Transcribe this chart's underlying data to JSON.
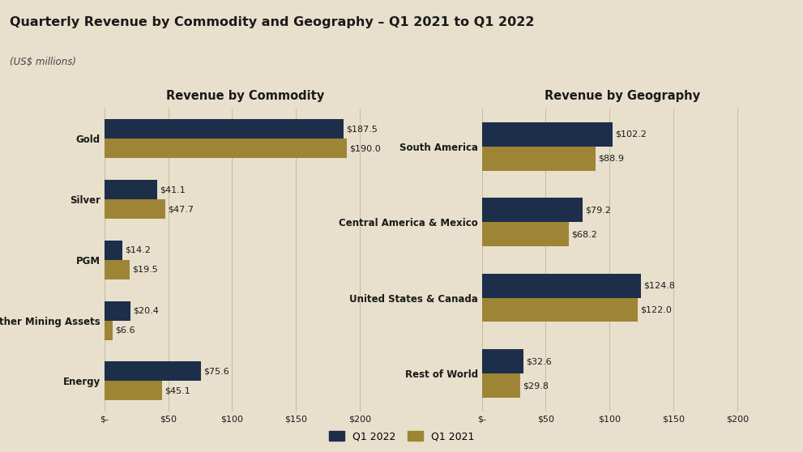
{
  "title": "Quarterly Revenue by Commodity and Geography – Q1 2021 to Q1 2022",
  "subtitle": "(US$ millions)",
  "background_color": "#e8e0cc",
  "title_color": "#1a1a1a",
  "subtitle_color": "#444444",
  "color_q1_2022": "#1c2e4a",
  "color_q1_2021": "#9e8535",
  "left_chart_title": "Revenue by Commodity",
  "right_chart_title": "Revenue by Geography",
  "commodity_categories": [
    "Gold",
    "Silver",
    "PGM",
    "Other Mining Assets",
    "Energy"
  ],
  "commodity_q1_2022": [
    187.5,
    41.1,
    14.2,
    20.4,
    75.6
  ],
  "commodity_q1_2021": [
    190.0,
    47.7,
    19.5,
    6.6,
    45.1
  ],
  "geography_categories": [
    "South America",
    "Central America & Mexico",
    "United States & Canada",
    "Rest of World"
  ],
  "geography_q1_2022": [
    102.2,
    79.2,
    124.8,
    32.6
  ],
  "geography_q1_2021": [
    88.9,
    68.2,
    122.0,
    29.8
  ],
  "x_ticks": [
    0,
    50,
    100,
    150,
    200
  ],
  "x_tick_labels": [
    "$-",
    "$50",
    "$100",
    "$150",
    "$200"
  ],
  "legend_labels": [
    "Q1 2022",
    "Q1 2021"
  ],
  "bar_height": 0.32,
  "xlim": [
    0,
    220
  ],
  "label_fontsize": 8.0,
  "axis_title_fontsize": 10.5,
  "category_fontsize": 8.5,
  "tick_fontsize": 8.0,
  "title_fontsize": 11.5,
  "subtitle_fontsize": 8.5,
  "header_rect_color": "#4a6a8a",
  "grid_color": "#c8be9e"
}
